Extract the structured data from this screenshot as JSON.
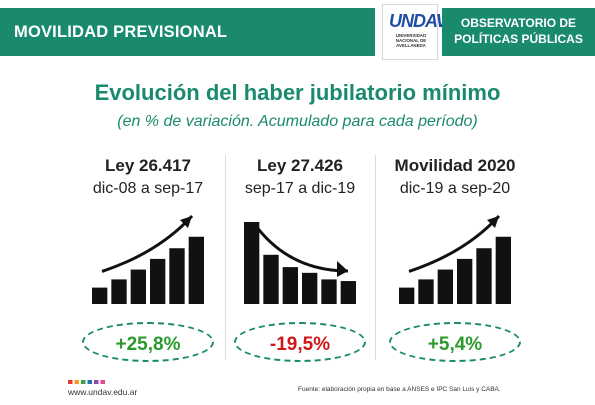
{
  "header": {
    "title": "MOVILIDAD PREVISIONAL",
    "logo_text_main": "UNDAV",
    "logo_text_sub": "UNIVERSIDAD NACIONAL DE AVELLANEDA",
    "observatory_line1": "OBSERVATORIO DE",
    "observatory_line2": "POLÍTICAS PÚBLICAS",
    "brand_color": "#1a8a6e",
    "logo_color": "#1f4ea3"
  },
  "main": {
    "title": "Evolución del haber jubilatorio mínimo",
    "subtitle": "(en % de variación. Acumulado para cada período)"
  },
  "panels": [
    {
      "law": "Ley 26.417",
      "period": "dic-08 a sep-17",
      "trend": "up",
      "bar_levels": [
        0.2,
        0.3,
        0.42,
        0.55,
        0.68,
        0.82
      ],
      "value": "+25,8%",
      "value_color": "#2a9a2a",
      "trend_icon": "rising-bar-chart-icon"
    },
    {
      "law": "Ley 27.426",
      "period": "sep-17 a dic-19",
      "trend": "down",
      "bar_levels": [
        1.0,
        0.6,
        0.45,
        0.38,
        0.3,
        0.28
      ],
      "value": "-19,5%",
      "value_color": "#d01616",
      "trend_icon": "falling-bar-chart-icon"
    },
    {
      "law": "Movilidad 2020",
      "period": "dic-19 a sep-20",
      "trend": "up",
      "bar_levels": [
        0.2,
        0.3,
        0.42,
        0.55,
        0.68,
        0.82
      ],
      "value": "+5,4%",
      "value_color": "#2a9a2a",
      "trend_icon": "rising-bar-chart-icon"
    }
  ],
  "footer": {
    "url": "www.undav.edu.ar",
    "source": "Fuente: elaboración propia en base a ANSES e IPC San Luis y CABA.",
    "square_colors": [
      "#e63c2f",
      "#f39a1e",
      "#3aa34a",
      "#2a6fb8",
      "#8e44ad",
      "#e64a8c"
    ]
  }
}
